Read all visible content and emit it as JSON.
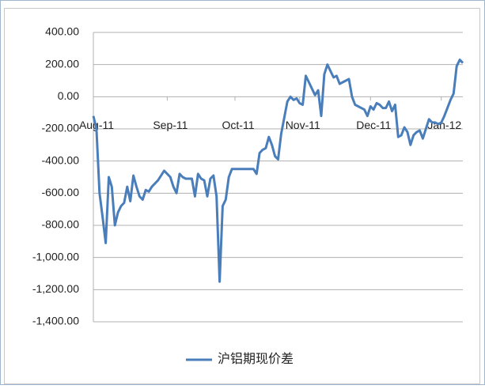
{
  "chart_data": {
    "type": "line",
    "series": [
      {
        "name": "沪铝期现价差",
        "color": "#4a7ebb",
        "values": [
          -120,
          -200,
          -600,
          -750,
          -910,
          -500,
          -560,
          -800,
          -720,
          -680,
          -660,
          -560,
          -650,
          -490,
          -560,
          -620,
          -640,
          -580,
          -590,
          -560,
          -540,
          -520,
          -490,
          -460,
          -480,
          -500,
          -560,
          -600,
          -480,
          -500,
          -510,
          -510,
          -510,
          -620,
          -480,
          -510,
          -520,
          -620,
          -510,
          -490,
          -620,
          -1150,
          -680,
          -640,
          -500,
          -450,
          -450,
          -450,
          -450,
          -450,
          -450,
          -450,
          -450,
          -480,
          -350,
          -330,
          -320,
          -250,
          -300,
          -370,
          -390,
          -230,
          -130,
          -30,
          0,
          -20,
          -10,
          -40,
          -50,
          130,
          90,
          50,
          10,
          40,
          -120,
          140,
          200,
          160,
          120,
          130,
          80,
          90,
          100,
          110,
          0,
          -50,
          -60,
          -70,
          -80,
          -120,
          -60,
          -80,
          -40,
          -50,
          -70,
          -70,
          -30,
          -90,
          -50,
          -250,
          -240,
          -190,
          -220,
          -300,
          -240,
          -220,
          -210,
          -260,
          -200,
          -140,
          -160,
          -160,
          -170,
          -160,
          -120,
          -70,
          -20,
          20,
          190,
          230,
          210
        ]
      }
    ],
    "xlim": [
      0,
      120
    ],
    "xticks": [
      {
        "value": 0,
        "label": "Aug-11"
      },
      {
        "value": 24,
        "label": "Sep-11"
      },
      {
        "value": 46,
        "label": "Oct-11"
      },
      {
        "value": 67,
        "label": "Nov-11"
      },
      {
        "value": 90,
        "label": "Dec-11"
      },
      {
        "value": 113,
        "label": "Jan-12"
      }
    ],
    "ylim": [
      -1400,
      400
    ],
    "yticks": [
      {
        "value": 400,
        "label": "400.00"
      },
      {
        "value": 200,
        "label": "200.00"
      },
      {
        "value": 0,
        "label": "0.00"
      },
      {
        "value": -200,
        "label": "-200.00"
      },
      {
        "value": -400,
        "label": "-400.00"
      },
      {
        "value": -600,
        "label": "-600.00"
      },
      {
        "value": -800,
        "label": "-800.00"
      },
      {
        "value": -1000,
        "label": "-1,000.00"
      },
      {
        "value": -1200,
        "label": "-1,200.00"
      },
      {
        "value": -1400,
        "label": "-1,400.00"
      }
    ],
    "grid": true,
    "legend": "bottom"
  }
}
